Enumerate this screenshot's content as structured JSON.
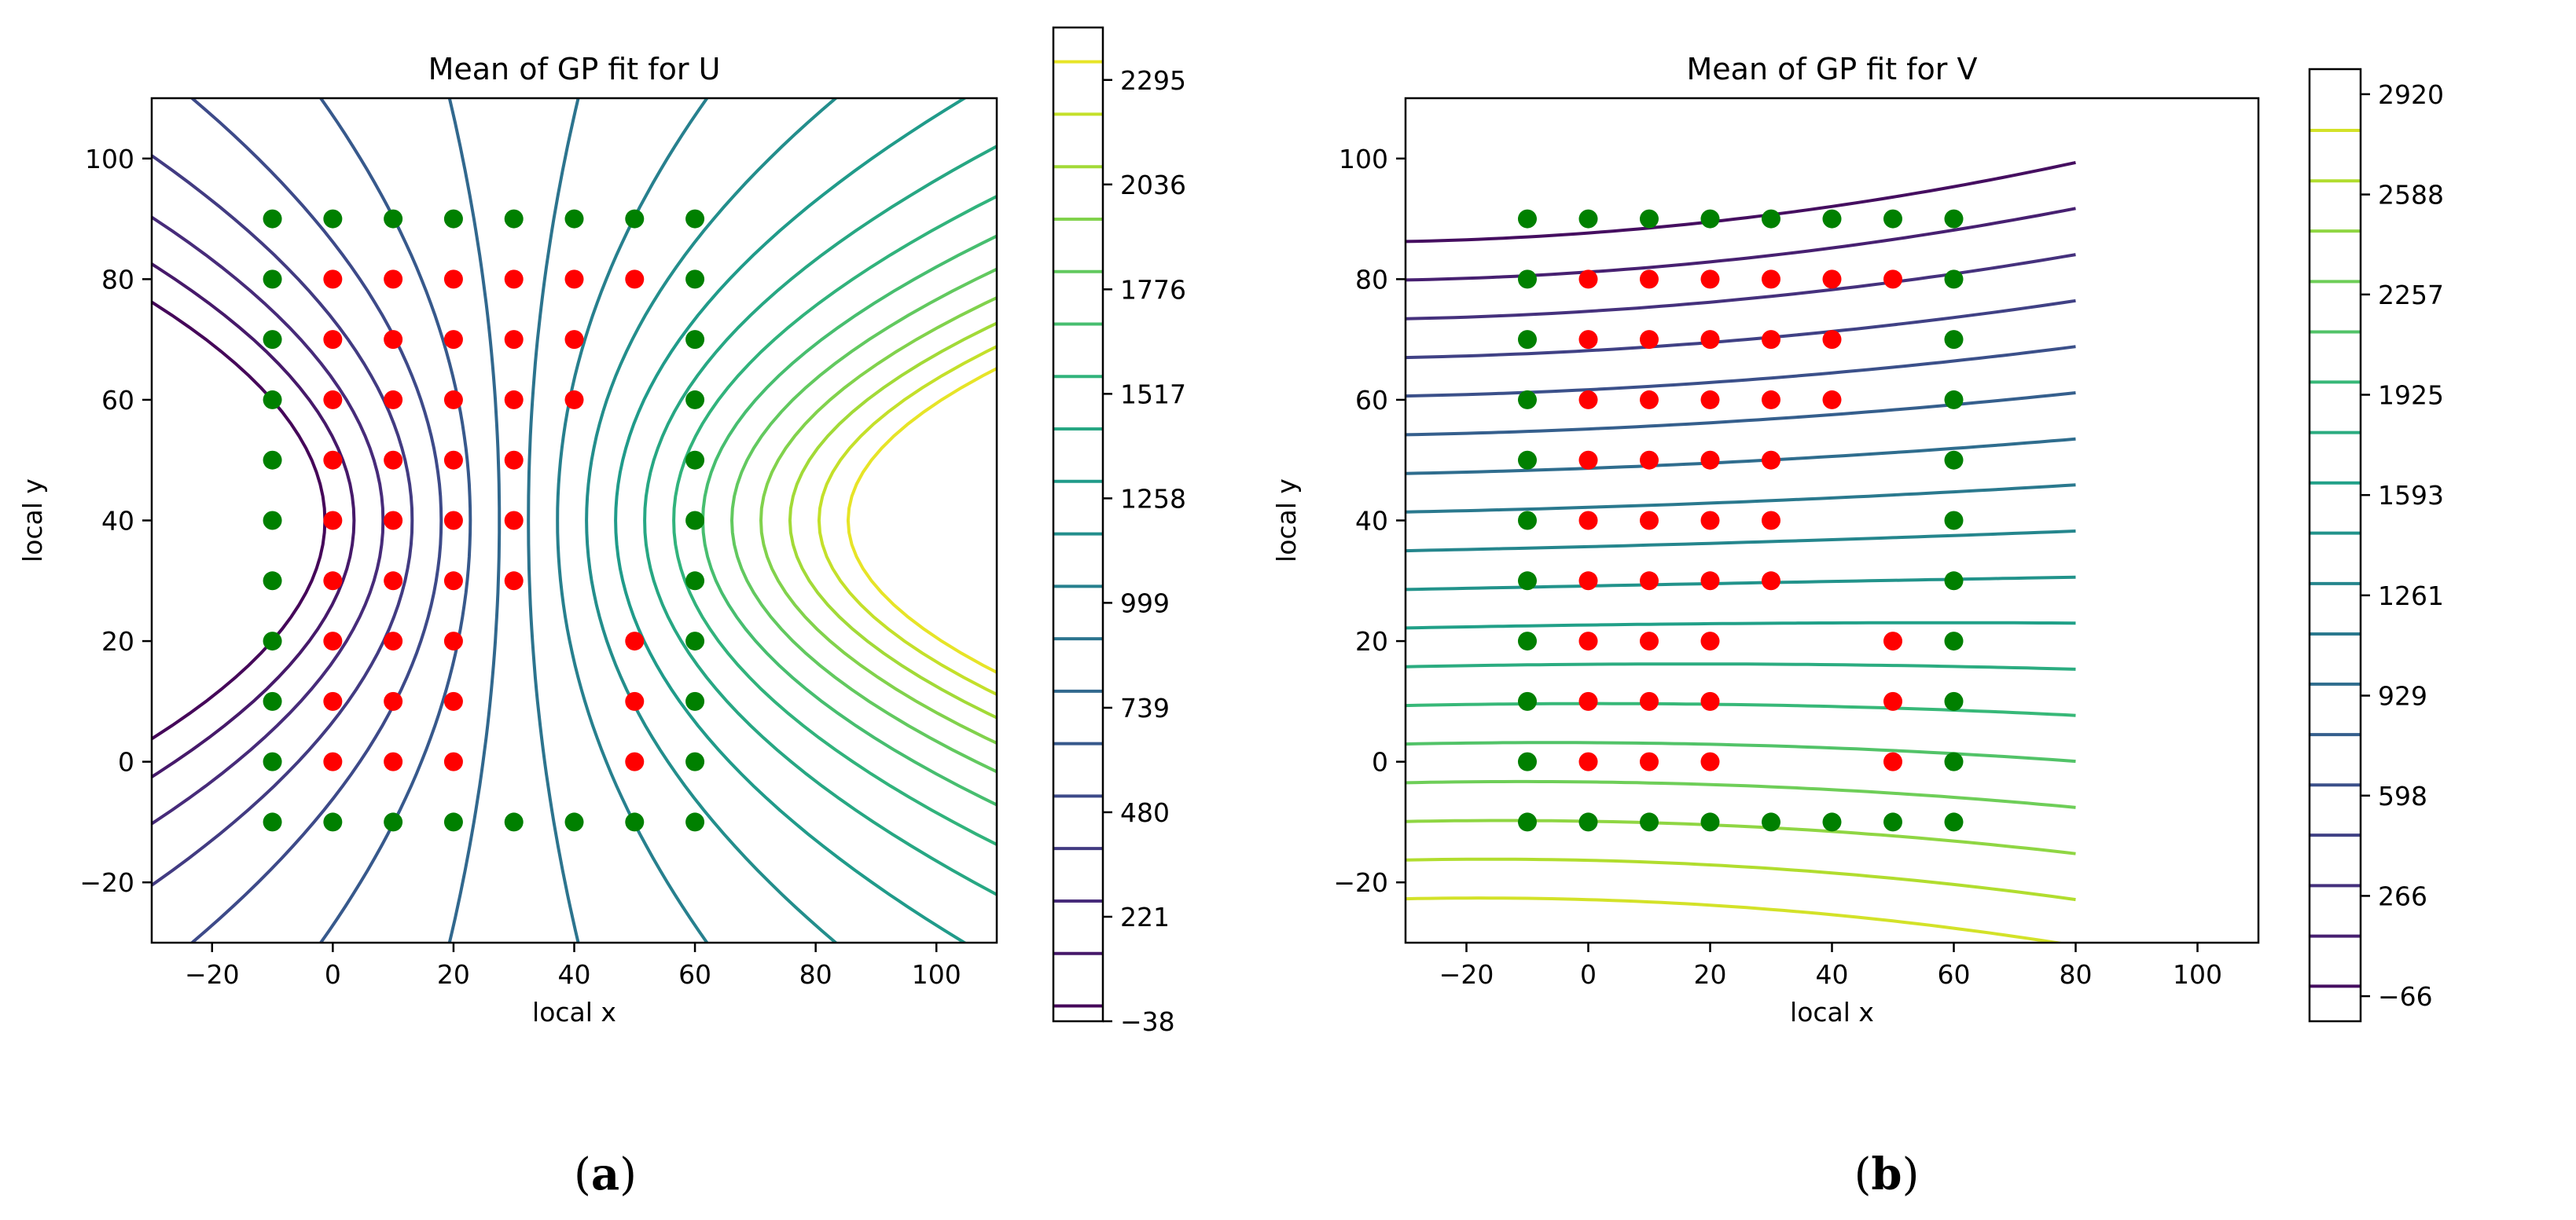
{
  "chart_data": [
    {
      "type": "contour",
      "title": "Mean of GP fit for U",
      "xlabel": "local x",
      "ylabel": "local y",
      "xlim": [
        -30,
        110
      ],
      "ylim": [
        -30,
        110
      ],
      "xticks": [
        -20,
        0,
        20,
        40,
        60,
        80,
        100
      ],
      "yticks": [
        -20,
        0,
        20,
        40,
        60,
        80,
        100
      ],
      "field": "x_aligned",
      "contour_levels": [
        0,
        130,
        260,
        390,
        520,
        650,
        780,
        910,
        1040,
        1170,
        1300,
        1430,
        1560,
        1690,
        1820,
        1950,
        2080,
        2210,
        2340
      ],
      "colorbar_range": [
        -38,
        2425
      ],
      "colorbar_ticks": [
        "2295",
        "2036",
        "1776",
        "1517",
        "1258",
        "999",
        "739",
        "480",
        "221",
        "−38"
      ],
      "colorbar_tick_values": [
        2295,
        2036,
        1776,
        1517,
        1258,
        999,
        739,
        480,
        221,
        -38
      ],
      "green_points": [
        [
          -10,
          90
        ],
        [
          0,
          90
        ],
        [
          10,
          90
        ],
        [
          20,
          90
        ],
        [
          30,
          90
        ],
        [
          40,
          90
        ],
        [
          50,
          90
        ],
        [
          60,
          90
        ],
        [
          -10,
          80
        ],
        [
          60,
          80
        ],
        [
          -10,
          70
        ],
        [
          60,
          70
        ],
        [
          -10,
          60
        ],
        [
          60,
          60
        ],
        [
          -10,
          50
        ],
        [
          60,
          50
        ],
        [
          -10,
          40
        ],
        [
          60,
          40
        ],
        [
          -10,
          30
        ],
        [
          60,
          30
        ],
        [
          -10,
          20
        ],
        [
          60,
          20
        ],
        [
          -10,
          10
        ],
        [
          60,
          10
        ],
        [
          -10,
          0
        ],
        [
          60,
          0
        ],
        [
          -10,
          -10
        ],
        [
          0,
          -10
        ],
        [
          10,
          -10
        ],
        [
          20,
          -10
        ],
        [
          30,
          -10
        ],
        [
          40,
          -10
        ],
        [
          50,
          -10
        ],
        [
          60,
          -10
        ]
      ],
      "red_points": [
        [
          0,
          80
        ],
        [
          10,
          80
        ],
        [
          20,
          80
        ],
        [
          30,
          80
        ],
        [
          40,
          80
        ],
        [
          50,
          80
        ],
        [
          0,
          70
        ],
        [
          10,
          70
        ],
        [
          20,
          70
        ],
        [
          30,
          70
        ],
        [
          40,
          70
        ],
        [
          0,
          60
        ],
        [
          10,
          60
        ],
        [
          20,
          60
        ],
        [
          30,
          60
        ],
        [
          40,
          60
        ],
        [
          0,
          50
        ],
        [
          10,
          50
        ],
        [
          20,
          50
        ],
        [
          30,
          50
        ],
        [
          0,
          40
        ],
        [
          10,
          40
        ],
        [
          20,
          40
        ],
        [
          30,
          40
        ],
        [
          0,
          30
        ],
        [
          10,
          30
        ],
        [
          20,
          30
        ],
        [
          30,
          30
        ],
        [
          0,
          20
        ],
        [
          10,
          20
        ],
        [
          20,
          20
        ],
        [
          50,
          20
        ],
        [
          0,
          10
        ],
        [
          10,
          10
        ],
        [
          20,
          10
        ],
        [
          50,
          10
        ],
        [
          0,
          0
        ],
        [
          10,
          0
        ],
        [
          20,
          0
        ],
        [
          50,
          0
        ]
      ],
      "caption": "(a)"
    },
    {
      "type": "contour",
      "title": "Mean of GP fit for V",
      "xlabel": "local x",
      "ylabel": "local y",
      "xlim": [
        -30,
        110
      ],
      "ylim": [
        -30,
        110
      ],
      "xticks": [
        -20,
        0,
        20,
        40,
        60,
        80,
        100
      ],
      "yticks": [
        -20,
        0,
        20,
        40,
        60,
        80,
        100
      ],
      "field": "y_aligned",
      "contour_levels": [
        2800,
        2633,
        2467,
        2300,
        2133,
        1967,
        1800,
        1633,
        1467,
        1300,
        1133,
        967,
        800,
        633,
        467,
        300,
        133,
        -33
      ],
      "colorbar_range": [
        -149,
        3003
      ],
      "colorbar_ticks": [
        "2920",
        "2588",
        "2257",
        "1925",
        "1593",
        "1261",
        "929",
        "598",
        "266",
        "−66"
      ],
      "colorbar_tick_values": [
        2920,
        2588,
        2257,
        1925,
        1593,
        1261,
        929,
        598,
        266,
        -66
      ],
      "green_points": [
        [
          -10,
          90
        ],
        [
          0,
          90
        ],
        [
          10,
          90
        ],
        [
          20,
          90
        ],
        [
          30,
          90
        ],
        [
          40,
          90
        ],
        [
          50,
          90
        ],
        [
          60,
          90
        ],
        [
          -10,
          80
        ],
        [
          60,
          80
        ],
        [
          -10,
          70
        ],
        [
          60,
          70
        ],
        [
          -10,
          60
        ],
        [
          60,
          60
        ],
        [
          -10,
          50
        ],
        [
          60,
          50
        ],
        [
          -10,
          40
        ],
        [
          60,
          40
        ],
        [
          -10,
          30
        ],
        [
          60,
          30
        ],
        [
          -10,
          20
        ],
        [
          60,
          20
        ],
        [
          -10,
          10
        ],
        [
          60,
          10
        ],
        [
          -10,
          0
        ],
        [
          60,
          0
        ],
        [
          -10,
          -10
        ],
        [
          0,
          -10
        ],
        [
          10,
          -10
        ],
        [
          20,
          -10
        ],
        [
          30,
          -10
        ],
        [
          40,
          -10
        ],
        [
          50,
          -10
        ],
        [
          60,
          -10
        ]
      ],
      "red_points": [
        [
          0,
          80
        ],
        [
          10,
          80
        ],
        [
          20,
          80
        ],
        [
          30,
          80
        ],
        [
          40,
          80
        ],
        [
          50,
          80
        ],
        [
          0,
          70
        ],
        [
          10,
          70
        ],
        [
          20,
          70
        ],
        [
          30,
          70
        ],
        [
          40,
          70
        ],
        [
          0,
          60
        ],
        [
          10,
          60
        ],
        [
          20,
          60
        ],
        [
          30,
          60
        ],
        [
          40,
          60
        ],
        [
          0,
          50
        ],
        [
          10,
          50
        ],
        [
          20,
          50
        ],
        [
          30,
          50
        ],
        [
          0,
          40
        ],
        [
          10,
          40
        ],
        [
          20,
          40
        ],
        [
          30,
          40
        ],
        [
          0,
          30
        ],
        [
          10,
          30
        ],
        [
          20,
          30
        ],
        [
          30,
          30
        ],
        [
          0,
          20
        ],
        [
          10,
          20
        ],
        [
          20,
          20
        ],
        [
          50,
          20
        ],
        [
          0,
          10
        ],
        [
          10,
          10
        ],
        [
          20,
          10
        ],
        [
          50,
          10
        ],
        [
          0,
          0
        ],
        [
          10,
          0
        ],
        [
          20,
          0
        ],
        [
          50,
          0
        ]
      ],
      "caption": "(b)"
    }
  ],
  "colors": {
    "green_point": "#008000",
    "red_point": "#ff0000",
    "axes": "#000000",
    "viridis": [
      "#440154",
      "#482878",
      "#3e4989",
      "#31688e",
      "#26828e",
      "#1f9e89",
      "#35b779",
      "#6ece58",
      "#b5de2b",
      "#fde725"
    ]
  }
}
